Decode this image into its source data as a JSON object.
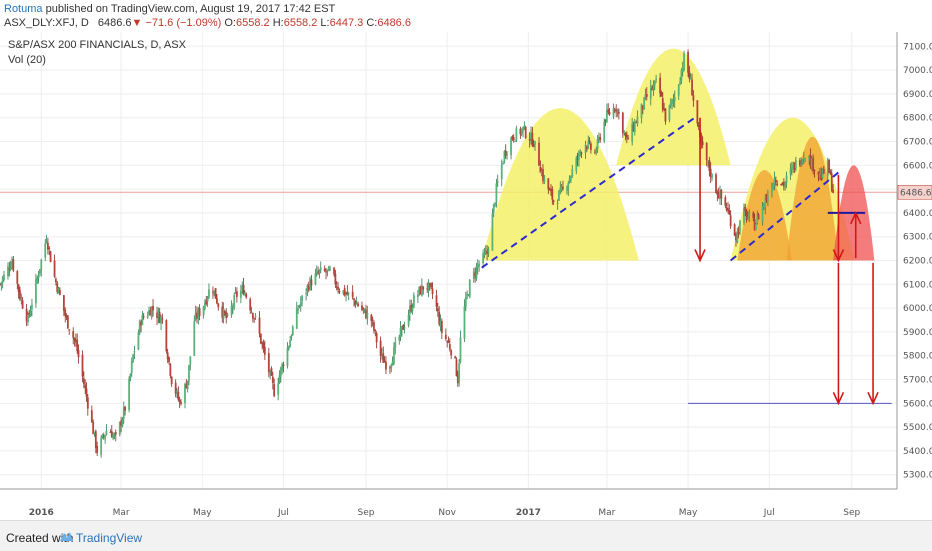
{
  "header": {
    "author": "Rotuma",
    "published": " published on TradingView.com, August 19, 2017 17:42 EST",
    "symbol": "ASX_DLY:XFJ, D",
    "last": "6486.6",
    "change": "−71.6 (−1.09%)",
    "o_label": "O:",
    "o_value": "6558.2",
    "h_label": "H:",
    "h_value": "6558.2",
    "l_label": "L:",
    "l_value": "6447.3",
    "c_label": "C:",
    "c_value": "6486.6"
  },
  "footer": {
    "created_with": "Created with",
    "brand": "TradingView"
  },
  "chart_data": {
    "type": "candlestick",
    "title": "S&P/ASX 200 FINANCIALS, D, ASX",
    "indicator": "Vol (20)",
    "current_price": 6486.6,
    "y_ticks": [
      7100,
      7000,
      6900,
      6800,
      6700,
      6600,
      6500,
      6400,
      6300,
      6200,
      6100,
      6000,
      5900,
      5800,
      5700,
      5600,
      5500,
      5400,
      5300
    ],
    "y_tick_labels": [
      "7100.0",
      "7000.0",
      "6900.0",
      "6800.0",
      "6700.0",
      "6600.0",
      "6500.0",
      "6400.0",
      "6300.0",
      "6200.0",
      "6100.0",
      "6000.0",
      "5900.0",
      "5800.0",
      "5700.0",
      "5600.0",
      "5500.0",
      "5400.0",
      "5300.0"
    ],
    "ylim": [
      5240,
      7160
    ],
    "x_range": [
      "2015-12-01",
      "2017-10-05"
    ],
    "x_ticks": [
      {
        "date": "2016-01-01",
        "label": "2016",
        "bold": true
      },
      {
        "date": "2016-03-01",
        "label": "Mar",
        "bold": false
      },
      {
        "date": "2016-05-01",
        "label": "May",
        "bold": false
      },
      {
        "date": "2016-07-01",
        "label": "Jul",
        "bold": false
      },
      {
        "date": "2016-09-01",
        "label": "Sep",
        "bold": false
      },
      {
        "date": "2016-11-01",
        "label": "Nov",
        "bold": false
      },
      {
        "date": "2017-01-01",
        "label": "2017",
        "bold": true
      },
      {
        "date": "2017-03-01",
        "label": "Mar",
        "bold": false
      },
      {
        "date": "2017-05-01",
        "label": "May",
        "bold": false
      },
      {
        "date": "2017-07-01",
        "label": "Jul",
        "bold": false
      },
      {
        "date": "2017-09-01",
        "label": "Sep",
        "bold": false
      }
    ],
    "price_path": [
      [
        "2015-12-01",
        6100
      ],
      [
        "2015-12-10",
        6200
      ],
      [
        "2015-12-16",
        6050
      ],
      [
        "2015-12-22",
        5950
      ],
      [
        "2015-12-30",
        6150
      ],
      [
        "2016-01-05",
        6300
      ],
      [
        "2016-01-10",
        6150
      ],
      [
        "2016-01-20",
        5950
      ],
      [
        "2016-01-27",
        5850
      ],
      [
        "2016-02-05",
        5600
      ],
      [
        "2016-02-12",
        5400
      ],
      [
        "2016-02-20",
        5500
      ],
      [
        "2016-02-26",
        5450
      ],
      [
        "2016-03-05",
        5600
      ],
      [
        "2016-03-10",
        5800
      ],
      [
        "2016-03-16",
        5950
      ],
      [
        "2016-03-24",
        6000
      ],
      [
        "2016-04-01",
        5950
      ],
      [
        "2016-04-08",
        5700
      ],
      [
        "2016-04-14",
        5600
      ],
      [
        "2016-04-20",
        5700
      ],
      [
        "2016-04-25",
        5950
      ],
      [
        "2016-05-01",
        6000
      ],
      [
        "2016-05-08",
        6100
      ],
      [
        "2016-05-14",
        6000
      ],
      [
        "2016-05-20",
        5950
      ],
      [
        "2016-05-26",
        6050
      ],
      [
        "2016-06-01",
        6080
      ],
      [
        "2016-06-10",
        5950
      ],
      [
        "2016-06-17",
        5800
      ],
      [
        "2016-06-24",
        5650
      ],
      [
        "2016-06-28",
        5720
      ],
      [
        "2016-07-05",
        5850
      ],
      [
        "2016-07-12",
        6000
      ],
      [
        "2016-07-20",
        6100
      ],
      [
        "2016-07-28",
        6150
      ],
      [
        "2016-08-05",
        6150
      ],
      [
        "2016-08-12",
        6080
      ],
      [
        "2016-08-20",
        6050
      ],
      [
        "2016-08-28",
        6000
      ],
      [
        "2016-09-05",
        5950
      ],
      [
        "2016-09-12",
        5800
      ],
      [
        "2016-09-18",
        5750
      ],
      [
        "2016-09-24",
        5850
      ],
      [
        "2016-10-01",
        5950
      ],
      [
        "2016-10-08",
        6050
      ],
      [
        "2016-10-16",
        6100
      ],
      [
        "2016-10-22",
        6050
      ],
      [
        "2016-10-28",
        5900
      ],
      [
        "2016-11-02",
        5850
      ],
      [
        "2016-11-06",
        5800
      ],
      [
        "2016-11-09",
        5700
      ],
      [
        "2016-11-12",
        5950
      ],
      [
        "2016-11-18",
        6100
      ],
      [
        "2016-11-24",
        6180
      ],
      [
        "2016-12-01",
        6230
      ],
      [
        "2016-12-08",
        6500
      ],
      [
        "2016-12-14",
        6650
      ],
      [
        "2016-12-20",
        6720
      ],
      [
        "2016-12-28",
        6750
      ],
      [
        "2017-01-05",
        6700
      ],
      [
        "2017-01-12",
        6550
      ],
      [
        "2017-01-20",
        6450
      ],
      [
        "2017-01-28",
        6500
      ],
      [
        "2017-02-05",
        6600
      ],
      [
        "2017-02-12",
        6700
      ],
      [
        "2017-02-20",
        6650
      ],
      [
        "2017-02-28",
        6800
      ],
      [
        "2017-03-08",
        6850
      ],
      [
        "2017-03-16",
        6700
      ],
      [
        "2017-03-24",
        6800
      ],
      [
        "2017-04-01",
        6900
      ],
      [
        "2017-04-08",
        6950
      ],
      [
        "2017-04-14",
        6800
      ],
      [
        "2017-04-22",
        6900
      ],
      [
        "2017-04-28",
        7050
      ],
      [
        "2017-05-03",
        6950
      ],
      [
        "2017-05-10",
        6700
      ],
      [
        "2017-05-16",
        6600
      ],
      [
        "2017-05-22",
        6500
      ],
      [
        "2017-05-30",
        6420
      ],
      [
        "2017-06-06",
        6300
      ],
      [
        "2017-06-12",
        6400
      ],
      [
        "2017-06-20",
        6350
      ],
      [
        "2017-06-28",
        6450
      ],
      [
        "2017-07-05",
        6550
      ],
      [
        "2017-07-12",
        6520
      ],
      [
        "2017-07-20",
        6600
      ],
      [
        "2017-07-28",
        6650
      ],
      [
        "2017-08-03",
        6600
      ],
      [
        "2017-08-09",
        6550
      ],
      [
        "2017-08-14",
        6600
      ],
      [
        "2017-08-18",
        6490
      ]
    ]
  },
  "annotations": {
    "target_price": 5600,
    "neckline_price": 6400,
    "base_price": 6200
  }
}
